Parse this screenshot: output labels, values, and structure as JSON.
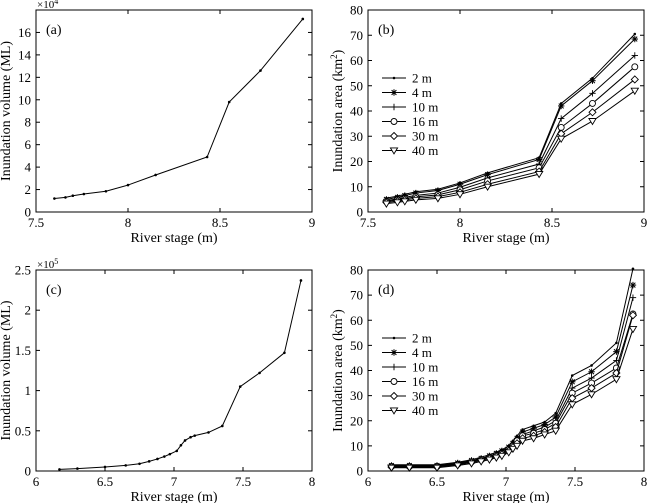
{
  "chart_data": [
    {
      "panel_label": "(a)",
      "type": "line",
      "xlabel": "River stage (m)",
      "ylabel": "Inundation volume (ML)",
      "y_multiplier": "×10",
      "y_multiplier_exp": "4",
      "xlim": [
        7.5,
        9
      ],
      "ylim": [
        0,
        18
      ],
      "xticks": [
        7.5,
        8,
        8.5,
        9
      ],
      "yticks": [
        0,
        2,
        4,
        6,
        8,
        10,
        12,
        14,
        16
      ],
      "xtick_labels": [
        "7.5",
        "8",
        "8.5",
        "9"
      ],
      "ytick_labels": [
        "0",
        "2",
        "4",
        "6",
        "8",
        "10",
        "12",
        "14",
        "16"
      ],
      "series": [
        {
          "marker": "dot",
          "x": [
            7.6,
            7.66,
            7.7,
            7.76,
            7.88,
            8.0,
            8.15,
            8.43,
            8.55,
            8.72,
            8.95
          ],
          "y": [
            1.2,
            1.3,
            1.45,
            1.6,
            1.85,
            2.4,
            3.3,
            4.9,
            9.8,
            12.6,
            17.2
          ]
        }
      ]
    },
    {
      "panel_label": "(b)",
      "type": "line",
      "xlabel": "River stage (m)",
      "ylabel": "Inundation area (km",
      "ylabel_sup": "2",
      "ylabel_end": ")",
      "xlim": [
        7.5,
        9
      ],
      "ylim": [
        0,
        80
      ],
      "xticks": [
        7.5,
        8,
        8.5,
        9
      ],
      "yticks": [
        0,
        10,
        20,
        30,
        40,
        50,
        60,
        70,
        80
      ],
      "xtick_labels": [
        "7.5",
        "8",
        "8.5",
        "9"
      ],
      "ytick_labels": [
        "0",
        "10",
        "20",
        "30",
        "40",
        "50",
        "60",
        "70",
        "80"
      ],
      "legend_position": "center-left",
      "series": [
        {
          "name": "2 m",
          "marker": "dot",
          "x": [
            7.6,
            7.66,
            7.7,
            7.76,
            7.88,
            8.0,
            8.15,
            8.43,
            8.55,
            8.72,
            8.95
          ],
          "y": [
            5.5,
            6.3,
            7.0,
            8.0,
            9.0,
            11.5,
            15.5,
            21.5,
            43.0,
            53.0,
            70.5
          ]
        },
        {
          "name": "4 m",
          "marker": "asterisk",
          "x": [
            7.6,
            7.66,
            7.7,
            7.76,
            7.88,
            8.0,
            8.15,
            8.43,
            8.55,
            8.72,
            8.95
          ],
          "y": [
            5.0,
            5.8,
            6.5,
            7.5,
            8.5,
            11.0,
            14.8,
            20.8,
            42.0,
            52.0,
            68.5
          ]
        },
        {
          "name": "10 m",
          "marker": "plus",
          "x": [
            7.6,
            7.66,
            7.7,
            7.76,
            7.88,
            8.0,
            8.15,
            8.43,
            8.55,
            8.72,
            8.95
          ],
          "y": [
            4.5,
            5.2,
            5.8,
            6.6,
            7.5,
            9.8,
            13.5,
            19.0,
            37.0,
            47.0,
            62.0
          ]
        },
        {
          "name": "16 m",
          "marker": "circle",
          "x": [
            7.6,
            7.66,
            7.7,
            7.76,
            7.88,
            8.0,
            8.15,
            8.43,
            8.55,
            8.72,
            8.95
          ],
          "y": [
            4.2,
            4.8,
            5.3,
            6.0,
            6.8,
            8.8,
            12.3,
            17.5,
            33.5,
            43.0,
            57.5
          ]
        },
        {
          "name": "30 m",
          "marker": "diamond",
          "x": [
            7.6,
            7.66,
            7.7,
            7.76,
            7.88,
            8.0,
            8.15,
            8.43,
            8.55,
            8.72,
            8.95
          ],
          "y": [
            3.8,
            4.3,
            4.8,
            5.4,
            6.1,
            7.8,
            11.0,
            16.0,
            31.0,
            39.5,
            52.5
          ]
        },
        {
          "name": "40 m",
          "marker": "triangle",
          "x": [
            7.6,
            7.66,
            7.7,
            7.76,
            7.88,
            8.0,
            8.15,
            8.43,
            8.55,
            8.72,
            8.95
          ],
          "y": [
            3.3,
            3.8,
            4.2,
            4.8,
            5.4,
            7.0,
            10.0,
            15.0,
            29.0,
            36.0,
            48.0
          ]
        }
      ]
    },
    {
      "panel_label": "(c)",
      "type": "line",
      "xlabel": "River stage (m)",
      "ylabel": "Inundation volume (ML)",
      "y_multiplier": "×10",
      "y_multiplier_exp": "5",
      "xlim": [
        6,
        8
      ],
      "ylim": [
        0,
        2.5
      ],
      "xticks": [
        6,
        6.5,
        7,
        7.5,
        8
      ],
      "yticks": [
        0,
        0.5,
        1,
        1.5,
        2,
        2.5
      ],
      "xtick_labels": [
        "6",
        "6.5",
        "7",
        "7.5",
        "8"
      ],
      "ytick_labels": [
        "0",
        "0.5",
        "1",
        "1.5",
        "2",
        "2.5"
      ],
      "series": [
        {
          "marker": "dot",
          "x": [
            6.17,
            6.3,
            6.5,
            6.65,
            6.75,
            6.82,
            6.88,
            6.93,
            6.97,
            7.02,
            7.05,
            7.08,
            7.12,
            7.15,
            7.25,
            7.35,
            7.48,
            7.62,
            7.8,
            7.92
          ],
          "y": [
            0.02,
            0.03,
            0.05,
            0.07,
            0.09,
            0.12,
            0.15,
            0.18,
            0.21,
            0.25,
            0.32,
            0.38,
            0.42,
            0.44,
            0.48,
            0.56,
            1.05,
            1.22,
            1.47,
            2.37
          ]
        }
      ]
    },
    {
      "panel_label": "(d)",
      "type": "line",
      "xlabel": "River stage (m)",
      "ylabel": "Inundation area (km",
      "ylabel_sup": "2",
      "ylabel_end": ")",
      "xlim": [
        6,
        8
      ],
      "ylim": [
        0,
        80
      ],
      "xticks": [
        6,
        6.5,
        7,
        7.5,
        8
      ],
      "yticks": [
        0,
        10,
        20,
        30,
        40,
        50,
        60,
        70,
        80
      ],
      "xtick_labels": [
        "6",
        "6.5",
        "7",
        "7.5",
        "8"
      ],
      "ytick_labels": [
        "0",
        "10",
        "20",
        "30",
        "40",
        "50",
        "60",
        "70",
        "80"
      ],
      "legend_position": "center-left",
      "series": [
        {
          "name": "2 m",
          "marker": "dot",
          "x": [
            6.17,
            6.3,
            6.5,
            6.65,
            6.75,
            6.82,
            6.88,
            6.93,
            6.97,
            7.02,
            7.05,
            7.08,
            7.12,
            7.2,
            7.28,
            7.36,
            7.48,
            7.62,
            7.8,
            7.92
          ],
          "y": [
            2.5,
            2.5,
            2.5,
            3.5,
            4.5,
            5.5,
            6.5,
            7.5,
            8.5,
            10.0,
            12.0,
            14.0,
            16.5,
            18.0,
            19.5,
            23.0,
            38.0,
            42.0,
            51.0,
            80.5
          ]
        },
        {
          "name": "4 m",
          "marker": "asterisk",
          "x": [
            6.17,
            6.3,
            6.5,
            6.65,
            6.75,
            6.82,
            6.88,
            6.93,
            6.97,
            7.02,
            7.05,
            7.08,
            7.12,
            7.2,
            7.28,
            7.36,
            7.48,
            7.62,
            7.8,
            7.92
          ],
          "y": [
            2.2,
            2.2,
            2.2,
            3.2,
            4.2,
            5.0,
            6.0,
            7.0,
            8.0,
            9.5,
            11.0,
            13.0,
            15.5,
            17.0,
            18.5,
            21.5,
            35.5,
            39.5,
            47.5,
            74.0
          ]
        },
        {
          "name": "10 m",
          "marker": "plus",
          "x": [
            6.17,
            6.3,
            6.5,
            6.65,
            6.75,
            6.82,
            6.88,
            6.93,
            6.97,
            7.02,
            7.05,
            7.08,
            7.12,
            7.2,
            7.28,
            7.36,
            7.48,
            7.62,
            7.8,
            7.92
          ],
          "y": [
            2.0,
            2.0,
            2.0,
            3.0,
            4.0,
            4.8,
            5.7,
            6.6,
            7.5,
            9.0,
            10.5,
            12.5,
            14.5,
            16.0,
            17.5,
            20.0,
            33.0,
            37.0,
            44.0,
            69.0
          ]
        },
        {
          "name": "16 m",
          "marker": "circle",
          "x": [
            6.17,
            6.3,
            6.5,
            6.65,
            6.75,
            6.82,
            6.88,
            6.93,
            6.97,
            7.02,
            7.05,
            7.08,
            7.12,
            7.2,
            7.28,
            7.36,
            7.48,
            7.62,
            7.8,
            7.92
          ],
          "y": [
            1.8,
            1.8,
            1.8,
            2.7,
            3.7,
            4.5,
            5.3,
            6.2,
            7.0,
            8.5,
            10.0,
            12.0,
            14.0,
            15.0,
            16.5,
            19.0,
            31.0,
            35.0,
            41.0,
            62.5
          ]
        },
        {
          "name": "30 m",
          "marker": "diamond",
          "x": [
            6.17,
            6.3,
            6.5,
            6.65,
            6.75,
            6.82,
            6.88,
            6.93,
            6.97,
            7.02,
            7.05,
            7.08,
            7.12,
            7.2,
            7.28,
            7.36,
            7.48,
            7.62,
            7.8,
            7.92
          ],
          "y": [
            1.6,
            1.6,
            1.6,
            2.5,
            3.4,
            4.2,
            5.0,
            5.8,
            6.6,
            8.0,
            9.5,
            11.0,
            13.0,
            14.0,
            15.5,
            17.5,
            29.0,
            33.0,
            39.0,
            62.0
          ]
        },
        {
          "name": "40 m",
          "marker": "triangle",
          "x": [
            6.17,
            6.3,
            6.5,
            6.65,
            6.75,
            6.82,
            6.88,
            6.93,
            6.97,
            7.02,
            7.05,
            7.08,
            7.12,
            7.2,
            7.28,
            7.36,
            7.48,
            7.62,
            7.8,
            7.92
          ],
          "y": [
            1.3,
            1.3,
            1.3,
            2.2,
            3.0,
            3.8,
            4.5,
            5.3,
            6.0,
            7.4,
            8.8,
            10.0,
            12.0,
            13.0,
            14.5,
            16.0,
            26.5,
            30.5,
            36.5,
            56.5
          ]
        }
      ]
    }
  ]
}
